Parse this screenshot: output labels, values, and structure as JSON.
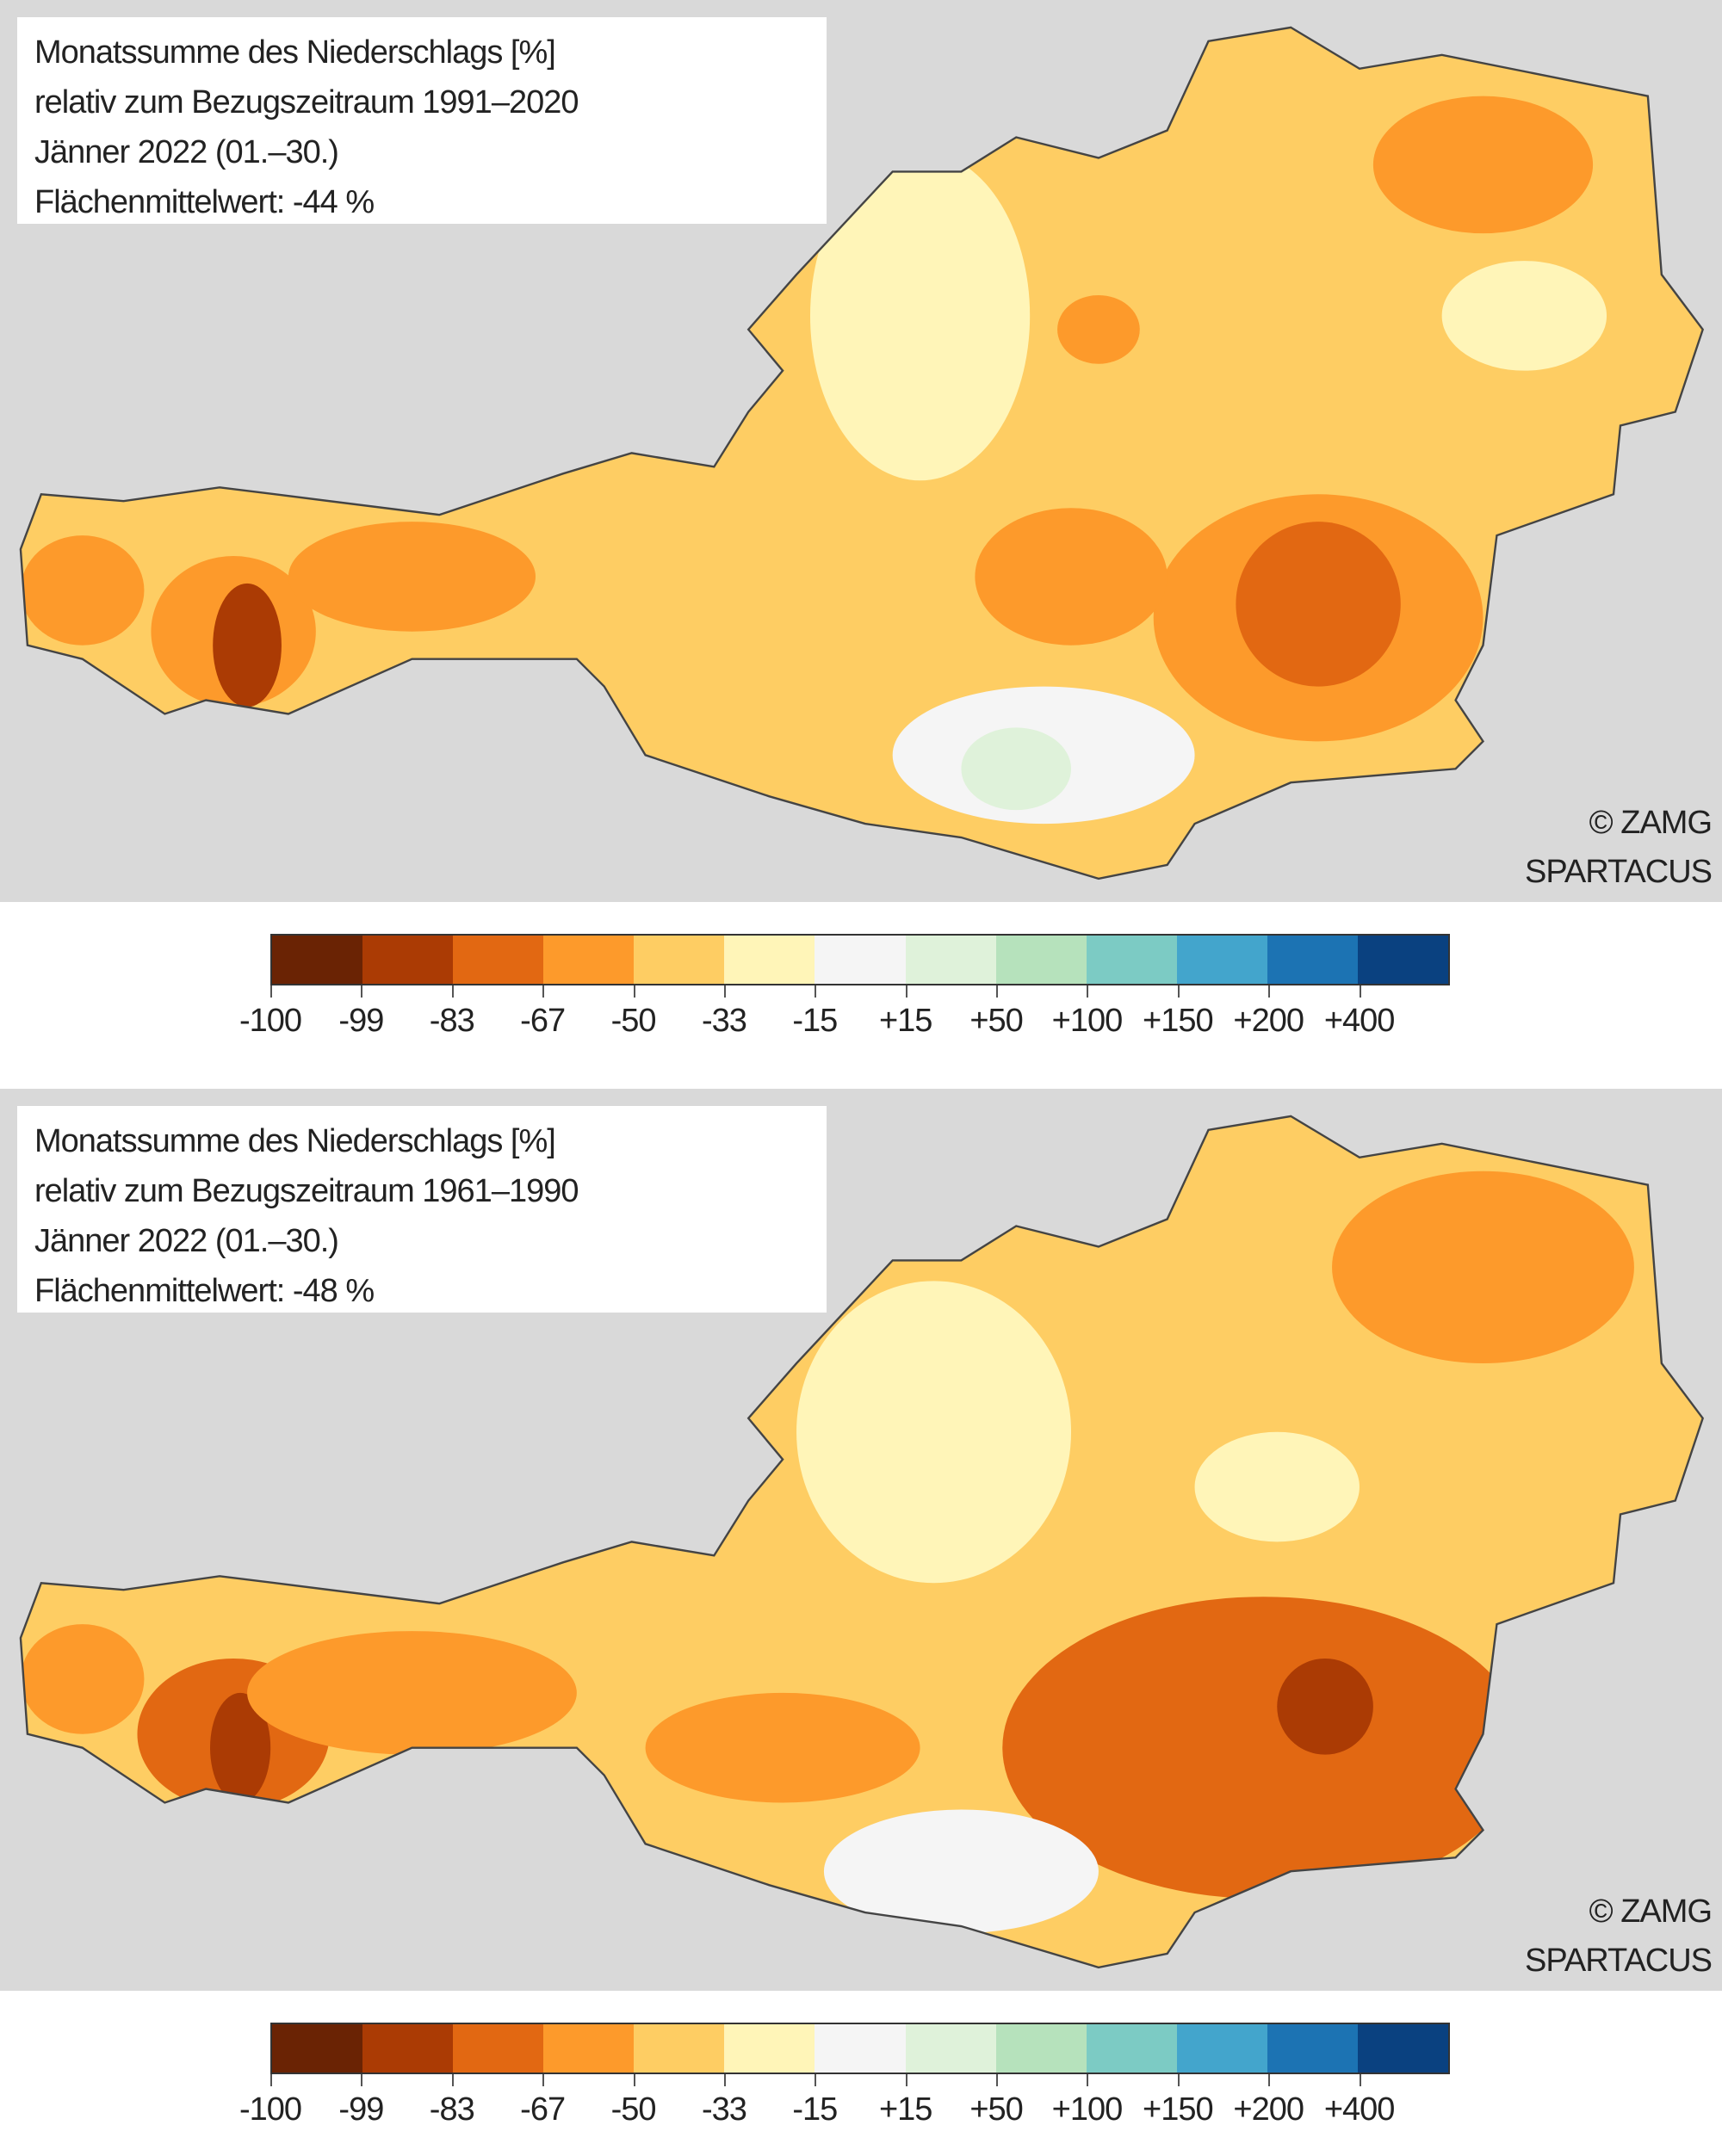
{
  "maps": [
    {
      "title": "Monatssumme des Niederschlags [%]",
      "reference": "relativ zum Bezugszeitraum 1991–2020",
      "period": "Jänner 2022 (01.–30.)",
      "area_mean": "Flächenmittelwert: -44 %",
      "area_mean_value": -44,
      "credit_1": "© ZAMG",
      "credit_2": "SPARTACUS"
    },
    {
      "title": "Monatssumme des Niederschlags [%]",
      "reference": "relativ zum Bezugszeitraum 1961–1990",
      "period": "Jänner 2022 (01.–30.)",
      "area_mean": "Flächenmittelwert: -48 %",
      "area_mean_value": -48,
      "credit_1": "© ZAMG",
      "credit_2": "SPARTACUS"
    }
  ],
  "legend": {
    "ticks": [
      "-100",
      "-99",
      "-83",
      "-67",
      "-50",
      "-33",
      "-15",
      "+15",
      "+50",
      "+100",
      "+150",
      "+200",
      "+400"
    ],
    "colors": [
      "#6a2304",
      "#ab3b04",
      "#e26812",
      "#fd9a2b",
      "#fecd63",
      "#fff5b8",
      "#f5f5f5",
      "#dff2da",
      "#b6e2bc",
      "#7ccbc4",
      "#43a5cc",
      "#1c73b3",
      "#0a4180"
    ]
  }
}
